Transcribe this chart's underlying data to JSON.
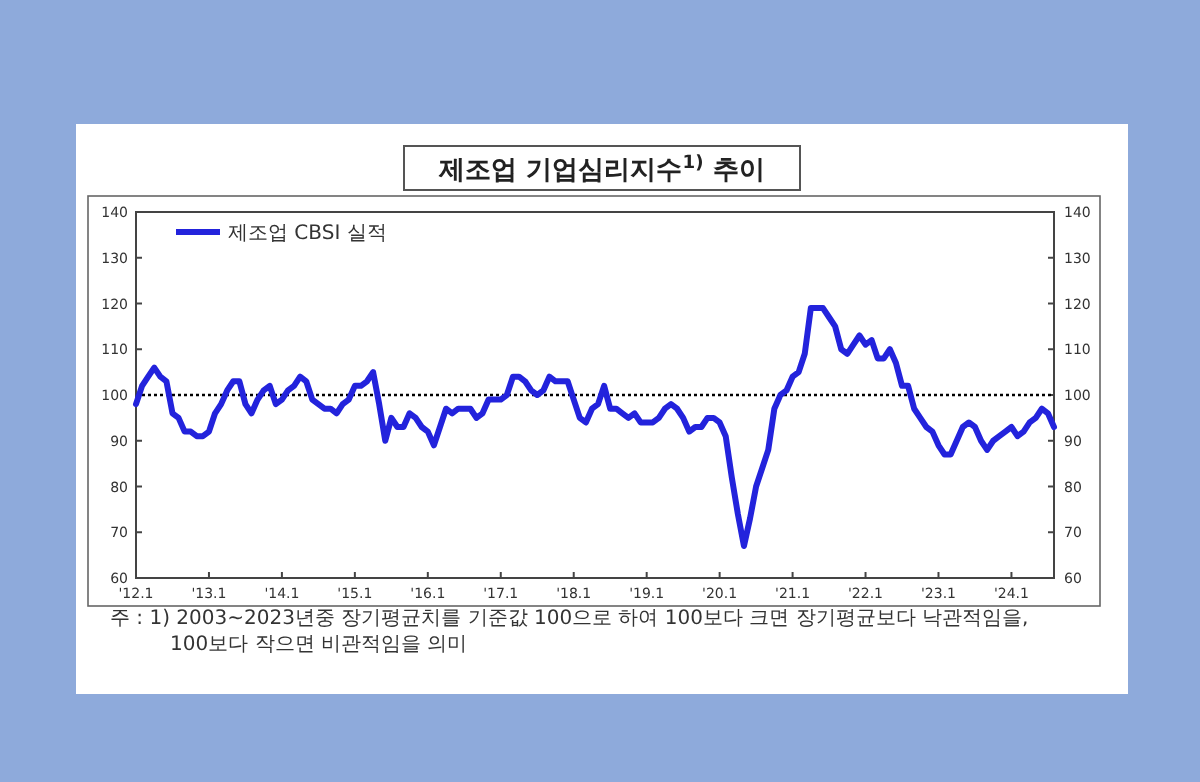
{
  "chart_data": {
    "type": "line",
    "title": "제조업  기업심리지수$^{1)}$ 추이",
    "annotations": [
      "주 : 1) 2003~2023년중 장기평균치를 기준값 100으로 하여 100보다 크면 장기평균보다 낙관적임을, 100보다 작으면 비관적임을 의미"
    ],
    "x": [
      "2012-01",
      "2012-02",
      "2012-03",
      "2012-04",
      "2012-05",
      "2012-06",
      "2012-07",
      "2012-08",
      "2012-09",
      "2012-10",
      "2012-11",
      "2012-12",
      "2013-01",
      "2013-02",
      "2013-03",
      "2013-04",
      "2013-05",
      "2013-06",
      "2013-07",
      "2013-08",
      "2013-09",
      "2013-10",
      "2013-11",
      "2013-12",
      "2014-01",
      "2014-02",
      "2014-03",
      "2014-04",
      "2014-05",
      "2014-06",
      "2014-07",
      "2014-08",
      "2014-09",
      "2014-10",
      "2014-11",
      "2014-12",
      "2015-01",
      "2015-02",
      "2015-03",
      "2015-04",
      "2015-05",
      "2015-06",
      "2015-07",
      "2015-08",
      "2015-09",
      "2015-10",
      "2015-11",
      "2015-12",
      "2016-01",
      "2016-02",
      "2016-03",
      "2016-04",
      "2016-05",
      "2016-06",
      "2016-07",
      "2016-08",
      "2016-09",
      "2016-10",
      "2016-11",
      "2016-12",
      "2017-01",
      "2017-02",
      "2017-03",
      "2017-04",
      "2017-05",
      "2017-06",
      "2017-07",
      "2017-08",
      "2017-09",
      "2017-10",
      "2017-11",
      "2017-12",
      "2018-01",
      "2018-02",
      "2018-03",
      "2018-04",
      "2018-05",
      "2018-06",
      "2018-07",
      "2018-08",
      "2018-09",
      "2018-10",
      "2018-11",
      "2018-12",
      "2019-01",
      "2019-02",
      "2019-03",
      "2019-04",
      "2019-05",
      "2019-06",
      "2019-07",
      "2019-08",
      "2019-09",
      "2019-10",
      "2019-11",
      "2019-12",
      "2020-01",
      "2020-02",
      "2020-03",
      "2020-04",
      "2020-05",
      "2020-06",
      "2020-07",
      "2020-08",
      "2020-09",
      "2020-10",
      "2020-11",
      "2020-12",
      "2021-01",
      "2021-02",
      "2021-03",
      "2021-04",
      "2021-05",
      "2021-06",
      "2021-07",
      "2021-08",
      "2021-09",
      "2021-10",
      "2021-11",
      "2021-12",
      "2022-01",
      "2022-02",
      "2022-03",
      "2022-04",
      "2022-05",
      "2022-06",
      "2022-07",
      "2022-08",
      "2022-09",
      "2022-10",
      "2022-11",
      "2022-12",
      "2023-01",
      "2023-02",
      "2023-03",
      "2023-04",
      "2023-05",
      "2023-06",
      "2023-07",
      "2023-08",
      "2023-09",
      "2023-10",
      "2023-11",
      "2023-12",
      "2024-01",
      "2024-02",
      "2024-03",
      "2024-04",
      "2024-05",
      "2024-06",
      "2024-07",
      "2024-08"
    ],
    "series": [
      {
        "name": "제조업 CBSI 실적",
        "color": "#2323dc",
        "values": [
          98,
          102,
          104,
          106,
          104,
          103,
          96,
          95,
          92,
          92,
          91,
          91,
          92,
          96,
          98,
          101,
          103,
          103,
          98,
          96,
          99,
          101,
          102,
          98,
          99,
          101,
          102,
          104,
          103,
          99,
          98,
          97,
          97,
          96,
          98,
          99,
          102,
          102,
          103,
          105,
          98,
          90,
          95,
          93,
          93,
          96,
          95,
          93,
          92,
          89,
          93,
          97,
          96,
          97,
          97,
          97,
          95,
          96,
          99,
          99,
          99,
          100,
          104,
          104,
          103,
          101,
          100,
          101,
          104,
          103,
          103,
          103,
          99,
          95,
          94,
          97,
          98,
          102,
          97,
          97,
          96,
          95,
          96,
          94,
          94,
          94,
          95,
          97,
          98,
          97,
          95,
          92,
          93,
          93,
          95,
          95,
          94,
          91,
          82,
          74,
          67,
          73,
          80,
          84,
          88,
          97,
          100,
          101,
          104,
          105,
          109,
          119,
          119,
          119,
          117,
          115,
          110,
          109,
          111,
          113,
          111,
          112,
          108,
          108,
          110,
          107,
          102,
          102,
          97,
          95,
          93,
          92,
          89,
          87,
          87,
          90,
          93,
          94,
          93,
          90,
          88,
          90,
          91,
          92,
          93,
          91,
          92,
          94,
          95,
          97,
          96,
          93
        ]
      }
    ],
    "xlim": [
      "2012-01",
      "2024-08"
    ],
    "xticks": [
      {
        "value": "2012-01",
        "label": "'12.1"
      },
      {
        "value": "2013-01",
        "label": "'13.1"
      },
      {
        "value": "2014-01",
        "label": "'14.1"
      },
      {
        "value": "2015-01",
        "label": "'15.1"
      },
      {
        "value": "2016-01",
        "label": "'16.1"
      },
      {
        "value": "2017-01",
        "label": "'17.1"
      },
      {
        "value": "2018-01",
        "label": "'18.1"
      },
      {
        "value": "2019-01",
        "label": "'19.1"
      },
      {
        "value": "2020-01",
        "label": "'20.1"
      },
      {
        "value": "2021-01",
        "label": "'21.1"
      },
      {
        "value": "2022-01",
        "label": "'22.1"
      },
      {
        "value": "2023-01",
        "label": "'23.1"
      },
      {
        "value": "2024-01",
        "label": "'24.1"
      }
    ],
    "ylim": [
      60,
      140
    ],
    "yticks": [
      60,
      70,
      80,
      90,
      100,
      110,
      120,
      130,
      140
    ],
    "y2lim": [
      60,
      140
    ],
    "y2ticks": [
      60,
      70,
      80,
      90,
      100,
      110,
      120,
      130,
      140
    ],
    "ref_lines": [
      {
        "axis": "y",
        "value": 100,
        "label": null,
        "color": "#000000",
        "line_style": "dotted"
      }
    ],
    "legend": "top left",
    "grid": false,
    "marker": "none",
    "line_style": "solid"
  }
}
